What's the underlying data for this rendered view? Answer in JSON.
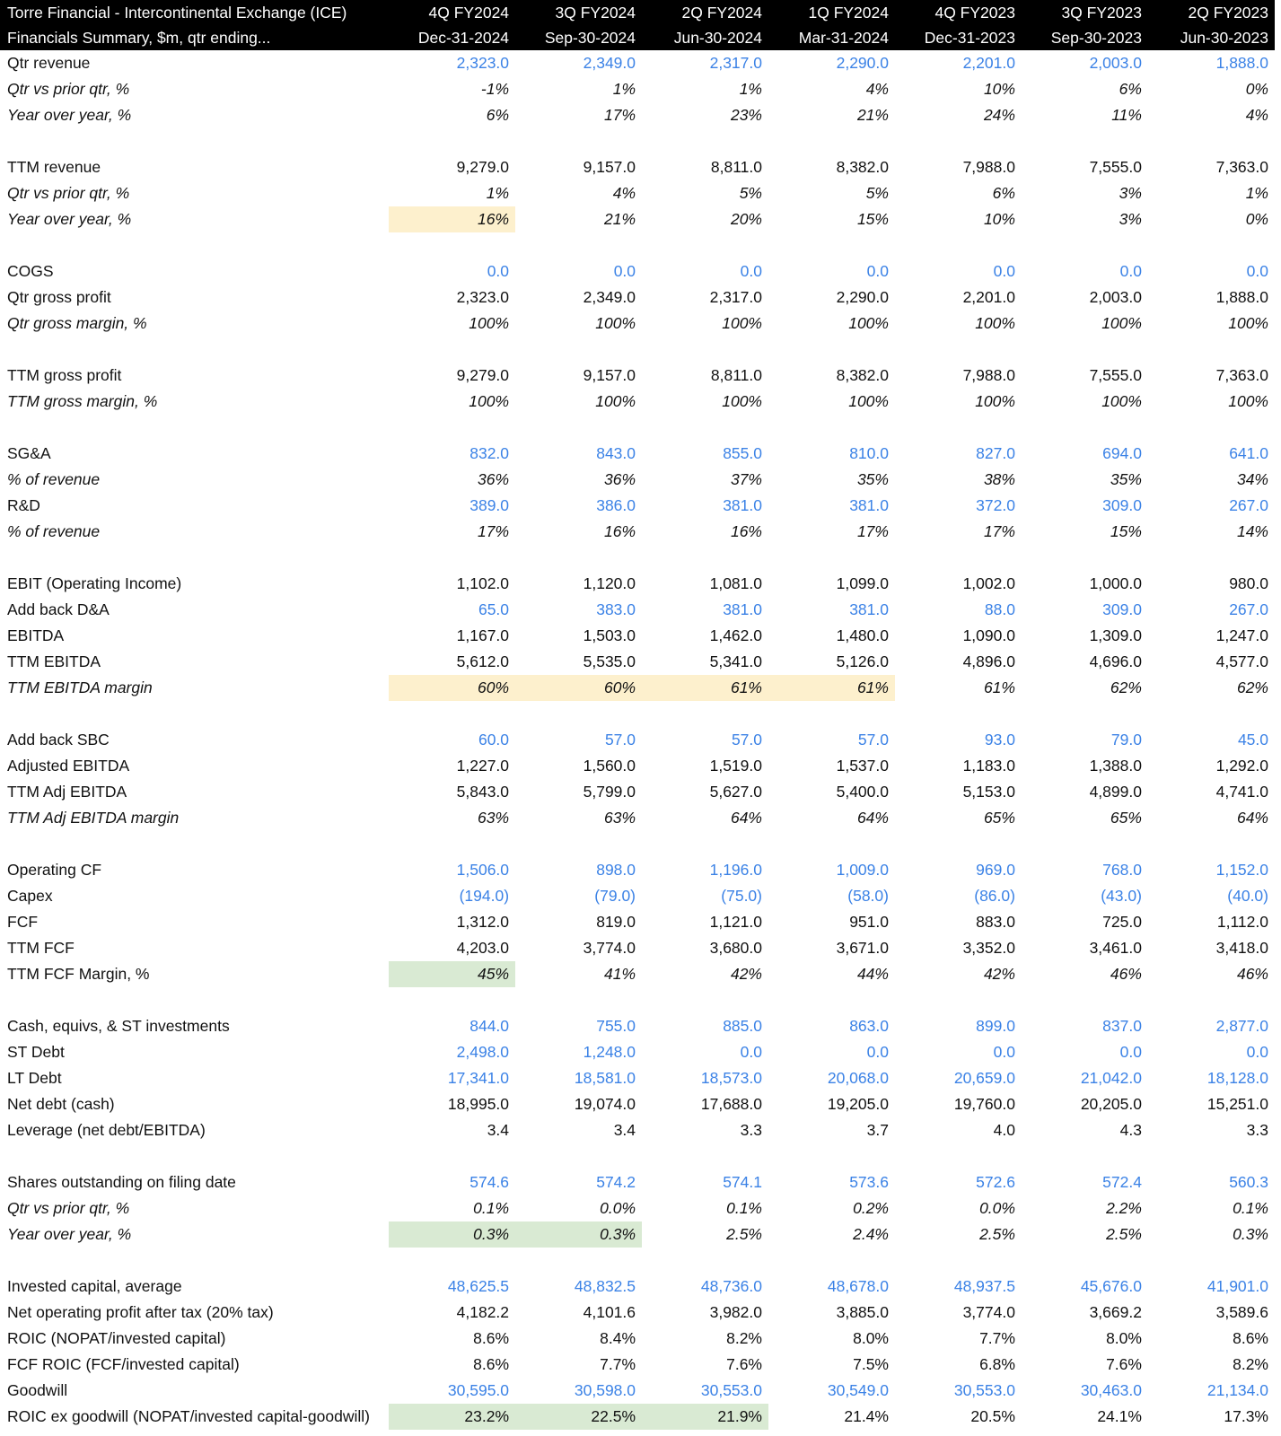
{
  "header": {
    "title": "Torre Financial - Intercontinental Exchange (ICE)",
    "subtitle": "Financials Summary, $m, qtr ending...",
    "periods": [
      "4Q FY2024",
      "3Q FY2024",
      "2Q FY2024",
      "1Q FY2024",
      "4Q FY2023",
      "3Q FY2023",
      "2Q FY2023"
    ],
    "dates": [
      "Dec-31-2024",
      "Sep-30-2024",
      "Jun-30-2024",
      "Mar-31-2024",
      "Dec-31-2023",
      "Sep-30-2023",
      "Jun-30-2023"
    ]
  },
  "colors": {
    "input_blue": "#3b82e6",
    "highlight_yellow": "#fdf0cd",
    "highlight_green": "#d9ead3",
    "header_bg": "#000000"
  },
  "rows": [
    {
      "label": "Qtr revenue",
      "style": "normal",
      "input": true,
      "values": [
        "2,323.0",
        "2,349.0",
        "2,317.0",
        "2,290.0",
        "2,201.0",
        "2,003.0",
        "1,888.0"
      ]
    },
    {
      "label": "Qtr vs prior qtr, %",
      "style": "italic",
      "values": [
        "-1%",
        "1%",
        "1%",
        "4%",
        "10%",
        "6%",
        "0%"
      ]
    },
    {
      "label": "Year over year, %",
      "style": "italic",
      "values": [
        "6%",
        "17%",
        "23%",
        "21%",
        "24%",
        "11%",
        "4%"
      ]
    },
    {
      "spacer": true
    },
    {
      "label": "TTM revenue",
      "style": "normal",
      "values": [
        "9,279.0",
        "9,157.0",
        "8,811.0",
        "8,382.0",
        "7,988.0",
        "7,555.0",
        "7,363.0"
      ]
    },
    {
      "label": "Qtr vs prior qtr, %",
      "style": "italic",
      "values": [
        "1%",
        "4%",
        "5%",
        "5%",
        "6%",
        "3%",
        "1%"
      ]
    },
    {
      "label": "Year over year, %",
      "style": "italic",
      "values": [
        "16%",
        "21%",
        "20%",
        "15%",
        "10%",
        "3%",
        "0%"
      ],
      "highlight": [
        "y",
        "",
        "",
        "",
        "",
        "",
        ""
      ]
    },
    {
      "spacer": true
    },
    {
      "label": "COGS",
      "style": "normal",
      "input": true,
      "values": [
        "0.0",
        "0.0",
        "0.0",
        "0.0",
        "0.0",
        "0.0",
        "0.0"
      ]
    },
    {
      "label": "Qtr gross profit",
      "style": "normal",
      "values": [
        "2,323.0",
        "2,349.0",
        "2,317.0",
        "2,290.0",
        "2,201.0",
        "2,003.0",
        "1,888.0"
      ]
    },
    {
      "label": "Qtr gross margin, %",
      "style": "italic",
      "values": [
        "100%",
        "100%",
        "100%",
        "100%",
        "100%",
        "100%",
        "100%"
      ]
    },
    {
      "spacer": true
    },
    {
      "label": "TTM gross profit",
      "style": "normal",
      "values": [
        "9,279.0",
        "9,157.0",
        "8,811.0",
        "8,382.0",
        "7,988.0",
        "7,555.0",
        "7,363.0"
      ]
    },
    {
      "label": "TTM gross margin, %",
      "style": "italic",
      "values": [
        "100%",
        "100%",
        "100%",
        "100%",
        "100%",
        "100%",
        "100%"
      ]
    },
    {
      "spacer": true
    },
    {
      "label": "SG&A",
      "style": "normal",
      "input": true,
      "values": [
        "832.0",
        "843.0",
        "855.0",
        "810.0",
        "827.0",
        "694.0",
        "641.0"
      ]
    },
    {
      "label": "% of revenue",
      "style": "italic",
      "values": [
        "36%",
        "36%",
        "37%",
        "35%",
        "38%",
        "35%",
        "34%"
      ]
    },
    {
      "label": "R&D",
      "style": "normal",
      "input": true,
      "values": [
        "389.0",
        "386.0",
        "381.0",
        "381.0",
        "372.0",
        "309.0",
        "267.0"
      ]
    },
    {
      "label": "% of revenue",
      "style": "italic",
      "values": [
        "17%",
        "16%",
        "16%",
        "17%",
        "17%",
        "15%",
        "14%"
      ]
    },
    {
      "spacer": true
    },
    {
      "label": "EBIT (Operating Income)",
      "style": "normal",
      "values": [
        "1,102.0",
        "1,120.0",
        "1,081.0",
        "1,099.0",
        "1,002.0",
        "1,000.0",
        "980.0"
      ]
    },
    {
      "label": "Add back D&A",
      "style": "normal",
      "input": true,
      "values": [
        "65.0",
        "383.0",
        "381.0",
        "381.0",
        "88.0",
        "309.0",
        "267.0"
      ]
    },
    {
      "label": "EBITDA",
      "style": "normal",
      "values": [
        "1,167.0",
        "1,503.0",
        "1,462.0",
        "1,480.0",
        "1,090.0",
        "1,309.0",
        "1,247.0"
      ]
    },
    {
      "label": "TTM EBITDA",
      "style": "normal",
      "values": [
        "5,612.0",
        "5,535.0",
        "5,341.0",
        "5,126.0",
        "4,896.0",
        "4,696.0",
        "4,577.0"
      ]
    },
    {
      "label": "TTM EBITDA margin",
      "style": "italic",
      "values": [
        "60%",
        "60%",
        "61%",
        "61%",
        "61%",
        "62%",
        "62%"
      ],
      "highlight": [
        "y",
        "y",
        "y",
        "y",
        "",
        "",
        ""
      ]
    },
    {
      "spacer": true
    },
    {
      "label": "Add back SBC",
      "style": "normal",
      "input": true,
      "values": [
        "60.0",
        "57.0",
        "57.0",
        "57.0",
        "93.0",
        "79.0",
        "45.0"
      ]
    },
    {
      "label": "Adjusted EBITDA",
      "style": "normal",
      "values": [
        "1,227.0",
        "1,560.0",
        "1,519.0",
        "1,537.0",
        "1,183.0",
        "1,388.0",
        "1,292.0"
      ]
    },
    {
      "label": "TTM Adj EBITDA",
      "style": "normal",
      "values": [
        "5,843.0",
        "5,799.0",
        "5,627.0",
        "5,400.0",
        "5,153.0",
        "4,899.0",
        "4,741.0"
      ]
    },
    {
      "label": "TTM Adj EBITDA margin",
      "style": "italic",
      "values": [
        "63%",
        "63%",
        "64%",
        "64%",
        "65%",
        "65%",
        "64%"
      ]
    },
    {
      "spacer": true
    },
    {
      "label": "Operating CF",
      "style": "normal",
      "input": true,
      "values": [
        "1,506.0",
        "898.0",
        "1,196.0",
        "1,009.0",
        "969.0",
        "768.0",
        "1,152.0"
      ]
    },
    {
      "label": "Capex",
      "style": "normal",
      "input": true,
      "values": [
        "(194.0)",
        "(79.0)",
        "(75.0)",
        "(58.0)",
        "(86.0)",
        "(43.0)",
        "(40.0)"
      ]
    },
    {
      "label": "FCF",
      "style": "normal",
      "values": [
        "1,312.0",
        "819.0",
        "1,121.0",
        "951.0",
        "883.0",
        "725.0",
        "1,112.0"
      ]
    },
    {
      "label": "TTM FCF",
      "style": "normal",
      "values": [
        "4,203.0",
        "3,774.0",
        "3,680.0",
        "3,671.0",
        "3,352.0",
        "3,461.0",
        "3,418.0"
      ]
    },
    {
      "label": "TTM FCF Margin, %",
      "style": "normal",
      "values_italic": true,
      "values": [
        "45%",
        "41%",
        "42%",
        "44%",
        "42%",
        "46%",
        "46%"
      ],
      "highlight": [
        "g",
        "",
        "",
        "",
        "",
        "",
        ""
      ]
    },
    {
      "spacer": true
    },
    {
      "label": "Cash, equivs, & ST investments",
      "style": "normal",
      "input": true,
      "values": [
        "844.0",
        "755.0",
        "885.0",
        "863.0",
        "899.0",
        "837.0",
        "2,877.0"
      ]
    },
    {
      "label": "ST Debt",
      "style": "normal",
      "input": true,
      "values": [
        "2,498.0",
        "1,248.0",
        "0.0",
        "0.0",
        "0.0",
        "0.0",
        "0.0"
      ]
    },
    {
      "label": "LT Debt",
      "style": "normal",
      "input": true,
      "values": [
        "17,341.0",
        "18,581.0",
        "18,573.0",
        "20,068.0",
        "20,659.0",
        "21,042.0",
        "18,128.0"
      ]
    },
    {
      "label": "Net debt (cash)",
      "style": "normal",
      "values": [
        "18,995.0",
        "19,074.0",
        "17,688.0",
        "19,205.0",
        "19,760.0",
        "20,205.0",
        "15,251.0"
      ]
    },
    {
      "label": "Leverage (net debt/EBITDA)",
      "style": "normal",
      "values": [
        "3.4",
        "3.4",
        "3.3",
        "3.7",
        "4.0",
        "4.3",
        "3.3"
      ]
    },
    {
      "spacer": true
    },
    {
      "label": "Shares outstanding on filing date",
      "style": "normal",
      "input": true,
      "values": [
        "574.6",
        "574.2",
        "574.1",
        "573.6",
        "572.6",
        "572.4",
        "560.3"
      ]
    },
    {
      "label": "Qtr vs prior qtr, %",
      "style": "italic",
      "values": [
        "0.1%",
        "0.0%",
        "0.1%",
        "0.2%",
        "0.0%",
        "2.2%",
        "0.1%"
      ]
    },
    {
      "label": "Year over year, %",
      "style": "italic",
      "values": [
        "0.3%",
        "0.3%",
        "2.5%",
        "2.4%",
        "2.5%",
        "2.5%",
        "0.3%"
      ],
      "highlight": [
        "g",
        "g",
        "",
        "",
        "",
        "",
        ""
      ]
    },
    {
      "spacer": true
    },
    {
      "label": "Invested capital, average",
      "style": "normal",
      "input": true,
      "values": [
        "48,625.5",
        "48,832.5",
        "48,736.0",
        "48,678.0",
        "48,937.5",
        "45,676.0",
        "41,901.0"
      ]
    },
    {
      "label": "Net operating profit after tax (20% tax)",
      "style": "normal",
      "values": [
        "4,182.2",
        "4,101.6",
        "3,982.0",
        "3,885.0",
        "3,774.0",
        "3,669.2",
        "3,589.6"
      ]
    },
    {
      "label": "ROIC (NOPAT/invested capital)",
      "style": "normal",
      "values": [
        "8.6%",
        "8.4%",
        "8.2%",
        "8.0%",
        "7.7%",
        "8.0%",
        "8.6%"
      ]
    },
    {
      "label": "FCF ROIC (FCF/invested capital)",
      "style": "normal",
      "values": [
        "8.6%",
        "7.7%",
        "7.6%",
        "7.5%",
        "6.8%",
        "7.6%",
        "8.2%"
      ]
    },
    {
      "label": "Goodwill",
      "style": "normal",
      "input": true,
      "values": [
        "30,595.0",
        "30,598.0",
        "30,553.0",
        "30,549.0",
        "30,553.0",
        "30,463.0",
        "21,134.0"
      ]
    },
    {
      "label": "ROIC ex goodwill (NOPAT/invested capital-goodwill)",
      "style": "normal",
      "values": [
        "23.2%",
        "22.5%",
        "21.9%",
        "21.4%",
        "20.5%",
        "24.1%",
        "17.3%"
      ],
      "highlight": [
        "g",
        "g",
        "g",
        "",
        "",
        "",
        ""
      ]
    }
  ]
}
